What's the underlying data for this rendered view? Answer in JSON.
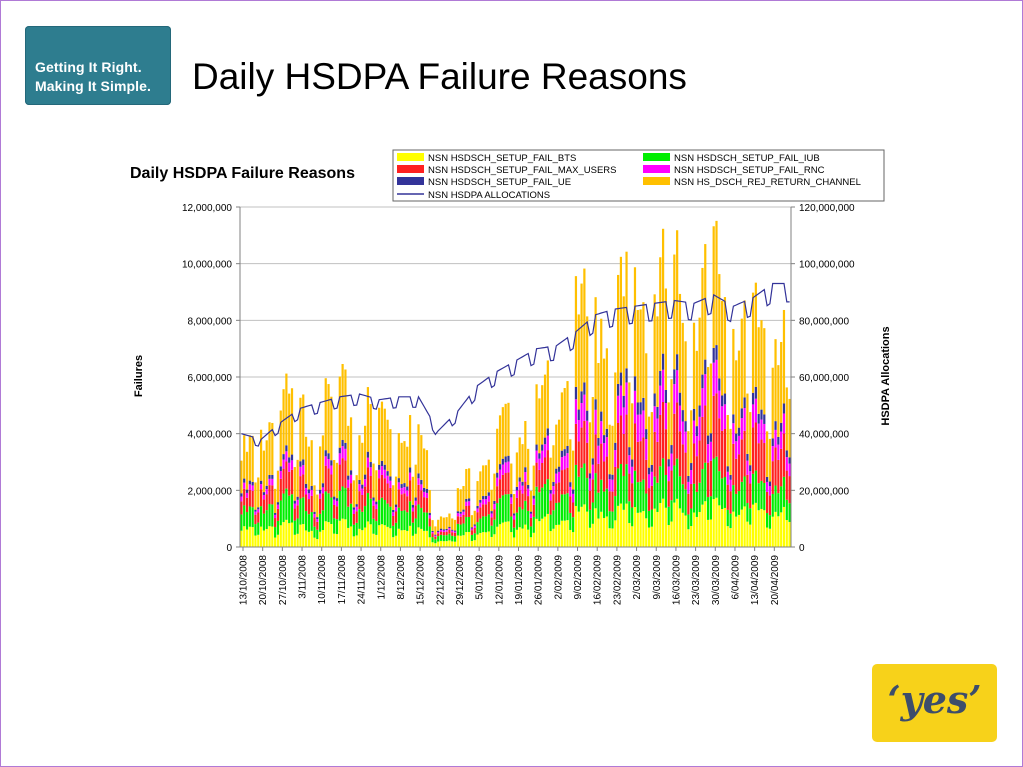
{
  "slide": {
    "title": "Daily HSDPA Failure Reasons",
    "logo_left_line1": "Getting It Right.",
    "logo_left_line2": "Making It Simple.",
    "logo_right": "‘yes’"
  },
  "colors": {
    "logo_left_bg": "#2e7d8f",
    "logo_right_bg": "#f7d21a",
    "frame": "#b07ad6"
  },
  "chart_data": {
    "type": "bar",
    "stacked": true,
    "title": "Daily HSDPA  Failure Reasons",
    "ylabel": "Failures",
    "y2label": "HSDPA Allocations",
    "ylim": [
      0,
      12000000
    ],
    "y2lim": [
      0,
      120000000
    ],
    "yticks": [
      "12,000,000",
      "10,000,000",
      "8,000,000",
      "6,000,000",
      "4,000,000",
      "2,000,000",
      "0"
    ],
    "y2ticks": [
      "120,000,000",
      "100,000,000",
      "80,000,000",
      "60,000,000",
      "40,000,000",
      "20,000,000",
      "0"
    ],
    "xtick_labels": [
      "13/10/2008",
      "20/10/2008",
      "27/10/2008",
      "3/11/2008",
      "10/11/2008",
      "17/11/2008",
      "24/11/2008",
      "1/12/2008",
      "8/12/2008",
      "15/12/2008",
      "22/12/2008",
      "29/12/2008",
      "5/01/2009",
      "12/01/2009",
      "19/01/2009",
      "26/01/2009",
      "2/02/2009",
      "9/02/2009",
      "16/02/2009",
      "23/02/2009",
      "2/03/2009",
      "9/03/2009",
      "16/03/2009",
      "23/03/2009",
      "30/03/2009",
      "6/04/2009",
      "13/04/2009",
      "20/04/2009"
    ],
    "grid": true,
    "legend_position": "top",
    "series": [
      {
        "name": "NSN HSDSCH_SETUP_FAIL_BTS",
        "color": "#ffff00"
      },
      {
        "name": "NSN HSDSCH_SETUP_FAIL_IUB",
        "color": "#00ee00"
      },
      {
        "name": "NSN HSDSCH_SETUP_FAIL_MAX_USERS",
        "color": "#ff2020"
      },
      {
        "name": "NSN HSDSCH_SETUP_FAIL_RNC",
        "color": "#ff00ff"
      },
      {
        "name": "NSN HSDSCH_SETUP_FAIL_UE",
        "color": "#333399"
      },
      {
        "name": "NSN HS_DSCH_REJ_RETURN_CHANNEL",
        "color": "#ffc000"
      },
      {
        "name": "NSN HSDPA  ALLOCATIONS",
        "color": "#333399",
        "type": "line",
        "axis": "secondary"
      }
    ],
    "weekly_points": {
      "x": [
        "13/10/2008",
        "20/10/2008",
        "27/10/2008",
        "3/11/2008",
        "10/11/2008",
        "17/11/2008",
        "24/11/2008",
        "1/12/2008",
        "8/12/2008",
        "15/12/2008",
        "22/12/2008",
        "29/12/2008",
        "5/01/2009",
        "12/01/2009",
        "19/01/2009",
        "26/01/2009",
        "2/02/2009",
        "9/02/2009",
        "16/02/2009",
        "23/02/2009",
        "2/03/2009",
        "9/03/2009",
        "16/03/2009",
        "23/03/2009",
        "30/03/2009",
        "6/04/2009",
        "13/04/2009",
        "20/04/2009"
      ],
      "bts": [
        500000,
        600000,
        700000,
        600000,
        600000,
        700000,
        650000,
        650000,
        650000,
        600000,
        200000,
        300000,
        500000,
        600000,
        700000,
        700000,
        900000,
        1000000,
        1100000,
        1100000,
        1100000,
        1200000,
        1200000,
        1200000,
        1300000,
        1200000,
        1100000,
        1200000
      ],
      "iub": [
        500000,
        600000,
        800000,
        700000,
        700000,
        800000,
        700000,
        750000,
        750000,
        700000,
        200000,
        300000,
        500000,
        700000,
        700000,
        800000,
        900000,
        1000000,
        1000000,
        1000000,
        1000000,
        1000000,
        1000000,
        1000000,
        1100000,
        900000,
        800000,
        900000
      ],
      "max_users": [
        400000,
        500000,
        700000,
        600000,
        600000,
        700000,
        650000,
        650000,
        650000,
        600000,
        100000,
        200000,
        400000,
        500000,
        600000,
        600000,
        800000,
        1000000,
        1100000,
        1200000,
        1300000,
        1400000,
        1400000,
        1400000,
        1700000,
        1400000,
        1200000,
        1300000
      ],
      "rnc": [
        150000,
        150000,
        250000,
        250000,
        200000,
        300000,
        250000,
        250000,
        250000,
        200000,
        50000,
        80000,
        150000,
        250000,
        300000,
        300000,
        400000,
        600000,
        700000,
        700000,
        900000,
        800000,
        800000,
        800000,
        900000,
        700000,
        600000,
        600000
      ],
      "ue": [
        100000,
        100000,
        150000,
        150000,
        150000,
        150000,
        150000,
        150000,
        150000,
        150000,
        50000,
        50000,
        100000,
        150000,
        150000,
        150000,
        200000,
        300000,
        300000,
        300000,
        400000,
        400000,
        400000,
        400000,
        400000,
        300000,
        300000,
        300000
      ],
      "rej_return_channel": [
        1000000,
        1500000,
        1800000,
        1700000,
        1700000,
        1900000,
        1600000,
        1700000,
        1600000,
        1500000,
        400000,
        600000,
        1000000,
        1300000,
        1400000,
        1500000,
        1800000,
        2700000,
        2900000,
        2900000,
        3000000,
        3100000,
        3100000,
        3000000,
        3300000,
        2900000,
        2600000,
        2800000
      ],
      "allocations": [
        40000000,
        38000000,
        44000000,
        49000000,
        51000000,
        53000000,
        54000000,
        52000000,
        53000000,
        53000000,
        41000000,
        48000000,
        57000000,
        62000000,
        66000000,
        70000000,
        71000000,
        76000000,
        82000000,
        84000000,
        85000000,
        86000000,
        87000000,
        86000000,
        89000000,
        85000000,
        88000000,
        93000000
      ]
    }
  }
}
